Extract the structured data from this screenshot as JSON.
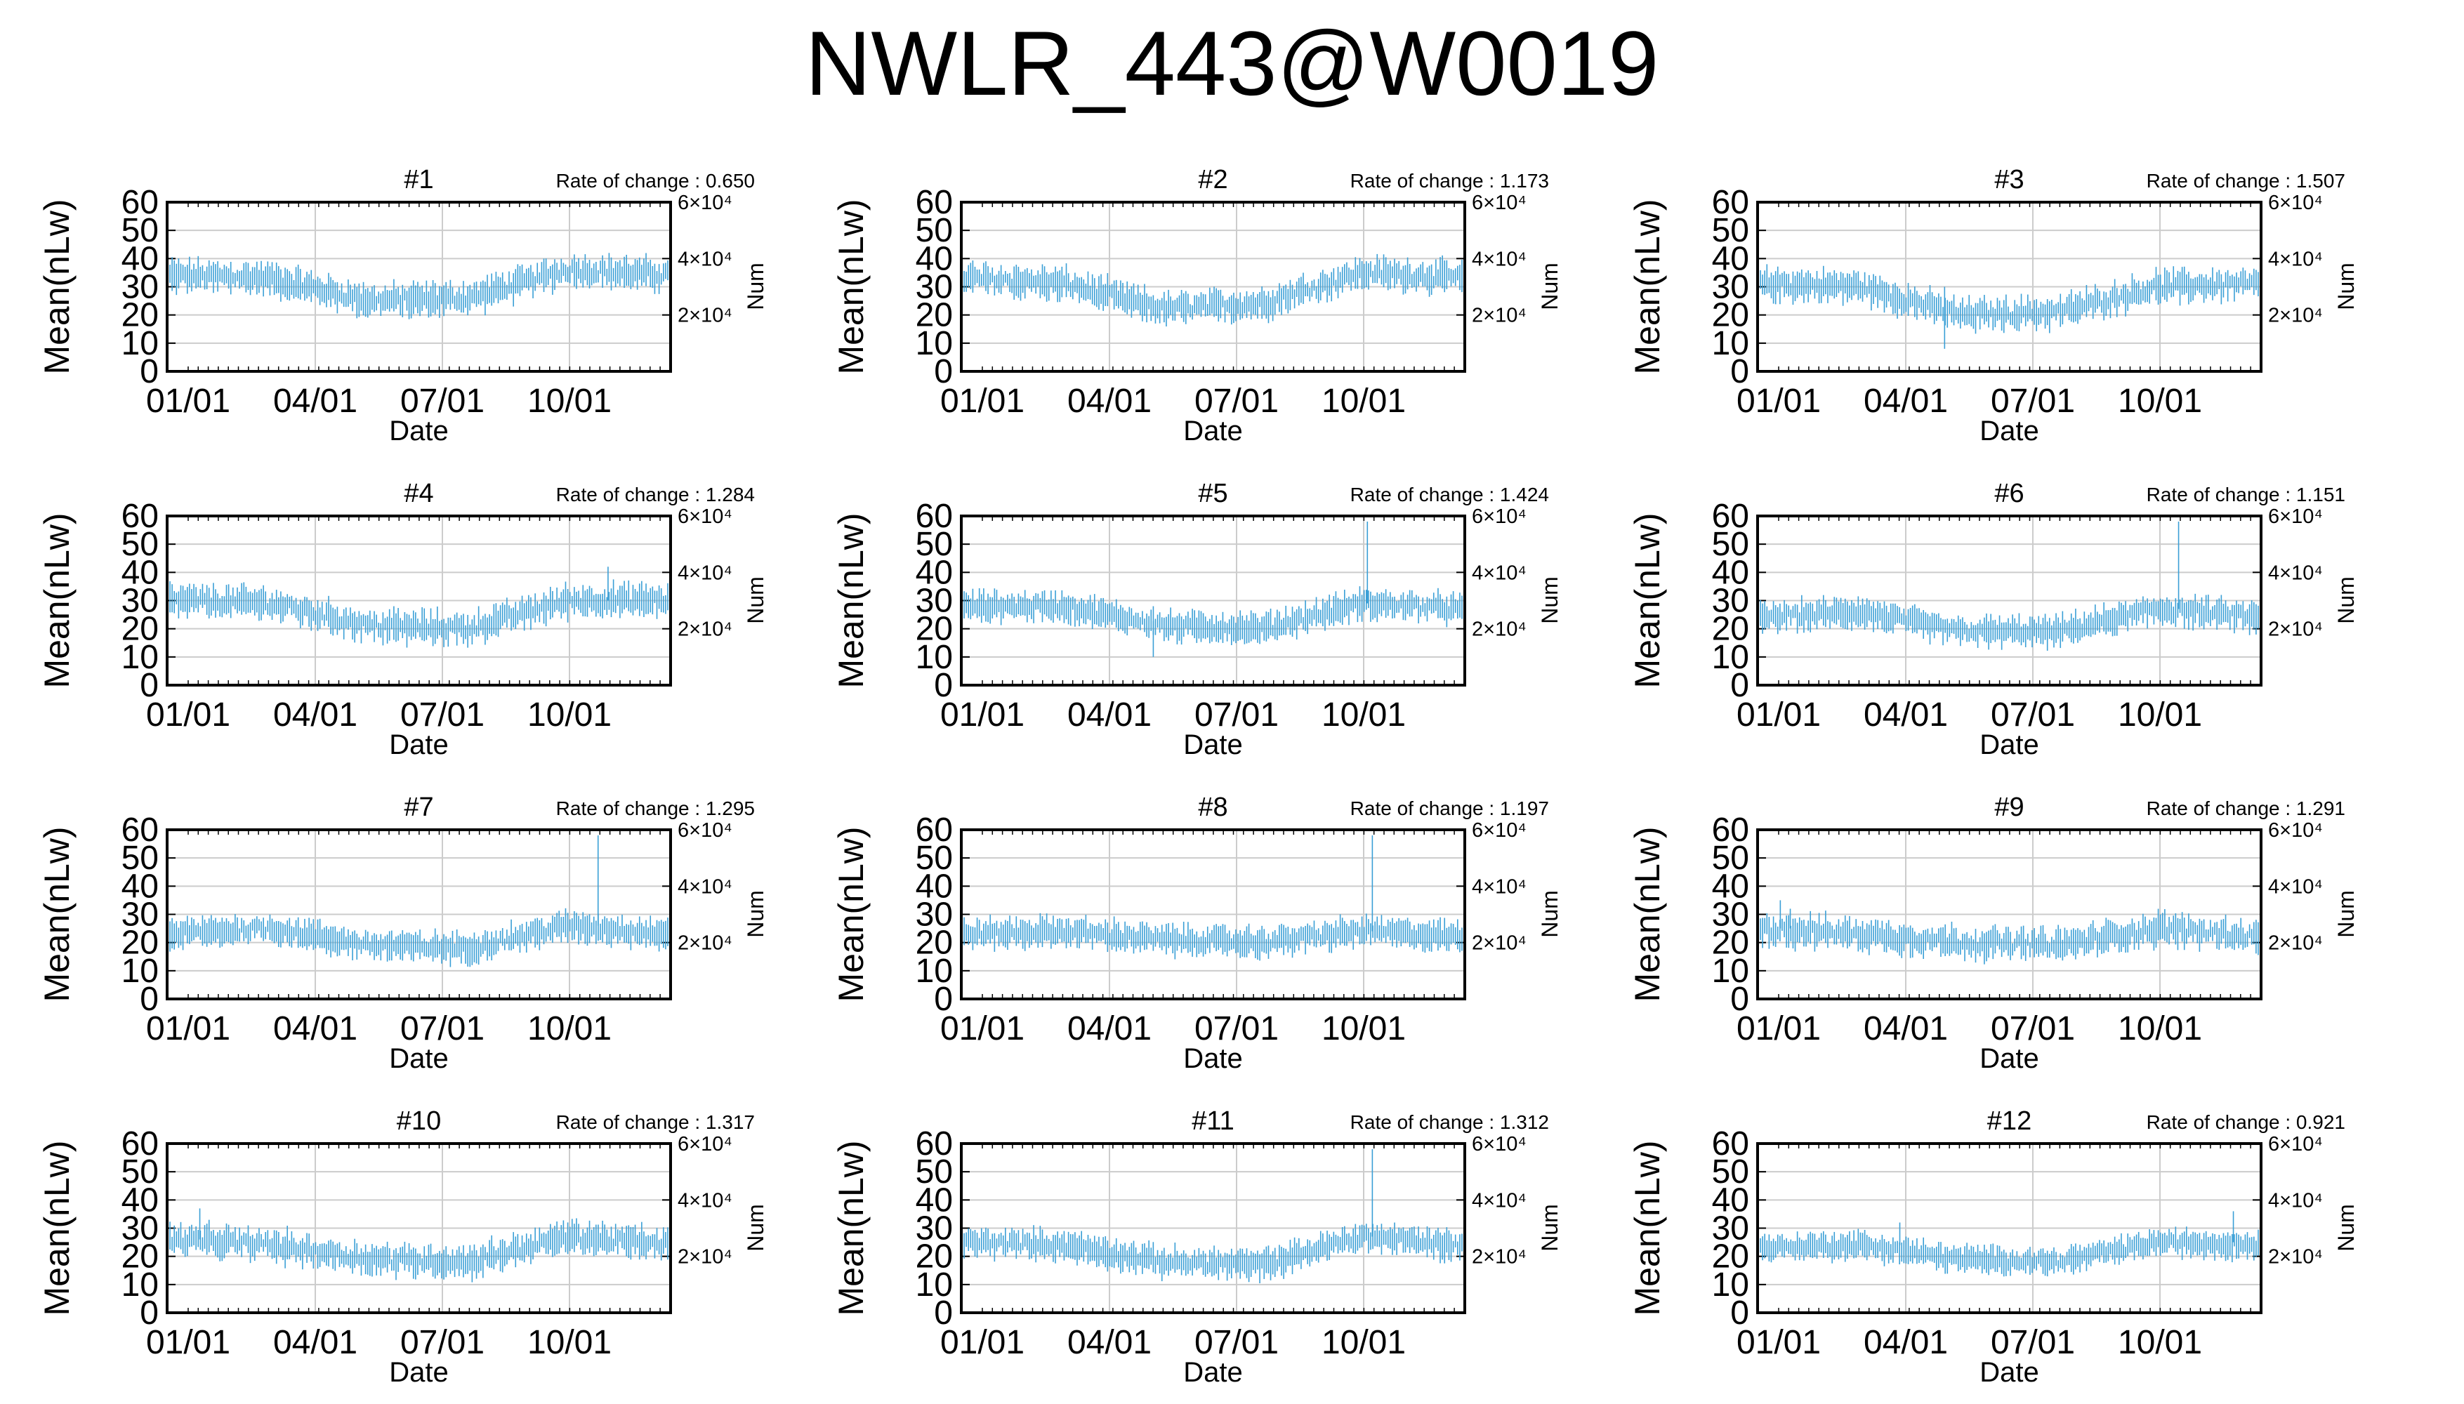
{
  "page_title": "NWLR_443@W0019",
  "chart_data": [
    {
      "type": "line",
      "title": "#1",
      "rate_label": "Rate of change : 0.650",
      "xlabel": "Date",
      "ylabel": "Mean(nLw)",
      "y2label": "Num",
      "x_ticks": [
        "01/01",
        "04/01",
        "07/01",
        "10/01"
      ],
      "y_ticks": [
        "0",
        "10",
        "20",
        "30",
        "40",
        "50",
        "60"
      ],
      "y2_ticks": [
        "2×10⁴",
        "4×10⁴",
        "6×10⁴"
      ],
      "ylim": [
        0,
        60
      ],
      "y2lim": [
        0,
        60000
      ],
      "color": "#3a9fd6",
      "seasonal": [
        34,
        33,
        25,
        26,
        36,
        34
      ],
      "noise": 4,
      "spikes": []
    },
    {
      "type": "line",
      "title": "#2",
      "rate_label": "Rate of change : 1.173",
      "xlabel": "Date",
      "ylabel": "Mean(nLw)",
      "y2label": "Num",
      "x_ticks": [
        "01/01",
        "04/01",
        "07/01",
        "10/01"
      ],
      "y_ticks": [
        "0",
        "10",
        "20",
        "30",
        "40",
        "50",
        "60"
      ],
      "y2_ticks": [
        "2×10⁴",
        "4×10⁴",
        "6×10⁴"
      ],
      "ylim": [
        0,
        60
      ],
      "y2lim": [
        0,
        60000
      ],
      "color": "#3a9fd6",
      "seasonal": [
        33,
        31,
        22,
        24,
        35,
        33
      ],
      "noise": 4,
      "spikes": []
    },
    {
      "type": "line",
      "title": "#3",
      "rate_label": "Rate of change : 1.507",
      "xlabel": "Date",
      "ylabel": "Mean(nLw)",
      "y2label": "Num",
      "x_ticks": [
        "01/01",
        "04/01",
        "07/01",
        "10/01"
      ],
      "y_ticks": [
        "0",
        "10",
        "20",
        "30",
        "40",
        "50",
        "60"
      ],
      "y2_ticks": [
        "2×10⁴",
        "4×10⁴",
        "6×10⁴"
      ],
      "ylim": [
        0,
        60
      ],
      "y2lim": [
        0,
        60000
      ],
      "color": "#3a9fd6",
      "seasonal": [
        31,
        30,
        20,
        21,
        30,
        31
      ],
      "noise": 4,
      "spikes": [
        [
          0.37,
          8
        ]
      ]
    },
    {
      "type": "line",
      "title": "#4",
      "rate_label": "Rate of change : 1.284",
      "xlabel": "Date",
      "ylabel": "Mean(nLw)",
      "y2label": "Num",
      "x_ticks": [
        "01/01",
        "04/01",
        "07/01",
        "10/01"
      ],
      "y_ticks": [
        "0",
        "10",
        "20",
        "30",
        "40",
        "50",
        "60"
      ],
      "y2_ticks": [
        "2×10⁴",
        "4×10⁴",
        "6×10⁴"
      ],
      "ylim": [
        0,
        60
      ],
      "y2lim": [
        0,
        60000
      ],
      "color": "#3a9fd6",
      "seasonal": [
        30,
        29,
        21,
        20,
        30,
        30
      ],
      "noise": 4,
      "spikes": [
        [
          0.88,
          42
        ]
      ]
    },
    {
      "type": "line",
      "title": "#5",
      "rate_label": "Rate of change : 1.424",
      "xlabel": "Date",
      "ylabel": "Mean(nLw)",
      "y2label": "Num",
      "x_ticks": [
        "01/01",
        "04/01",
        "07/01",
        "10/01"
      ],
      "y_ticks": [
        "0",
        "10",
        "20",
        "30",
        "40",
        "50",
        "60"
      ],
      "y2_ticks": [
        "2×10⁴",
        "4×10⁴",
        "6×10⁴"
      ],
      "ylim": [
        0,
        60
      ],
      "y2lim": [
        0,
        60000
      ],
      "color": "#3a9fd6",
      "seasonal": [
        28,
        28,
        21,
        20,
        29,
        27
      ],
      "noise": 3.5,
      "spikes": [
        [
          0.81,
          58
        ],
        [
          0.38,
          10
        ]
      ]
    },
    {
      "type": "line",
      "title": "#6",
      "rate_label": "Rate of change : 1.151",
      "xlabel": "Date",
      "ylabel": "Mean(nLw)",
      "y2label": "Num",
      "x_ticks": [
        "01/01",
        "04/01",
        "07/01",
        "10/01"
      ],
      "y_ticks": [
        "0",
        "10",
        "20",
        "30",
        "40",
        "50",
        "60"
      ],
      "y2_ticks": [
        "2×10⁴",
        "4×10⁴",
        "6×10⁴"
      ],
      "ylim": [
        0,
        60
      ],
      "y2lim": [
        0,
        60000
      ],
      "color": "#3a9fd6",
      "seasonal": [
        24,
        26,
        19,
        19,
        27,
        24
      ],
      "noise": 3.5,
      "spikes": [
        [
          0.84,
          58
        ]
      ]
    },
    {
      "type": "line",
      "title": "#7",
      "rate_label": "Rate of change : 1.295",
      "xlabel": "Date",
      "ylabel": "Mean(nLw)",
      "y2label": "Num",
      "x_ticks": [
        "01/01",
        "04/01",
        "07/01",
        "10/01"
      ],
      "y_ticks": [
        "0",
        "10",
        "20",
        "30",
        "40",
        "50",
        "60"
      ],
      "y2_ticks": [
        "2×10⁴",
        "4×10⁴",
        "6×10⁴"
      ],
      "ylim": [
        0,
        60
      ],
      "y2lim": [
        0,
        60000
      ],
      "color": "#3a9fd6",
      "seasonal": [
        23,
        25,
        19,
        18,
        26,
        23
      ],
      "noise": 3.5,
      "spikes": [
        [
          0.86,
          58
        ]
      ]
    },
    {
      "type": "line",
      "title": "#8",
      "rate_label": "Rate of change : 1.197",
      "xlabel": "Date",
      "ylabel": "Mean(nLw)",
      "y2label": "Num",
      "x_ticks": [
        "01/01",
        "04/01",
        "07/01",
        "10/01"
      ],
      "y_ticks": [
        "0",
        "10",
        "20",
        "30",
        "40",
        "50",
        "60"
      ],
      "y2_ticks": [
        "2×10⁴",
        "4×10⁴",
        "6×10⁴"
      ],
      "ylim": [
        0,
        60
      ],
      "y2lim": [
        0,
        60000
      ],
      "color": "#3a9fd6",
      "seasonal": [
        23,
        24,
        21,
        20,
        24,
        22
      ],
      "noise": 3.5,
      "spikes": [
        [
          0.82,
          58
        ]
      ]
    },
    {
      "type": "line",
      "title": "#9",
      "rate_label": "Rate of change : 1.291",
      "xlabel": "Date",
      "ylabel": "Mean(nLw)",
      "y2label": "Num",
      "x_ticks": [
        "01/01",
        "04/01",
        "07/01",
        "10/01"
      ],
      "y_ticks": [
        "0",
        "10",
        "20",
        "30",
        "40",
        "50",
        "60"
      ],
      "y2_ticks": [
        "2×10⁴",
        "4×10⁴",
        "6×10⁴"
      ],
      "ylim": [
        0,
        60
      ],
      "y2lim": [
        0,
        60000
      ],
      "color": "#3a9fd6",
      "seasonal": [
        25,
        23,
        20,
        19,
        25,
        22
      ],
      "noise": 4,
      "spikes": [
        [
          0.04,
          35
        ],
        [
          0.06,
          32
        ]
      ]
    },
    {
      "type": "line",
      "title": "#10",
      "rate_label": "Rate of change : 1.317",
      "xlabel": "Date",
      "ylabel": "Mean(nLw)",
      "y2label": "Num",
      "x_ticks": [
        "01/01",
        "04/01",
        "07/01",
        "10/01"
      ],
      "y_ticks": [
        "0",
        "10",
        "20",
        "30",
        "40",
        "50",
        "60"
      ],
      "y2_ticks": [
        "2×10⁴",
        "4×10⁴",
        "6×10⁴"
      ],
      "ylim": [
        0,
        60
      ],
      "y2lim": [
        0,
        60000
      ],
      "color": "#3a9fd6",
      "seasonal": [
        26,
        24,
        19,
        18,
        27,
        24
      ],
      "noise": 4,
      "spikes": [
        [
          0.06,
          37
        ]
      ]
    },
    {
      "type": "line",
      "title": "#11",
      "rate_label": "Rate of change : 1.312",
      "xlabel": "Date",
      "ylabel": "Mean(nLw)",
      "y2label": "Num",
      "x_ticks": [
        "01/01",
        "04/01",
        "07/01",
        "10/01"
      ],
      "y_ticks": [
        "0",
        "10",
        "20",
        "30",
        "40",
        "50",
        "60"
      ],
      "y2_ticks": [
        "2×10⁴",
        "4×10⁴",
        "6×10⁴"
      ],
      "ylim": [
        0,
        60
      ],
      "y2lim": [
        0,
        60000
      ],
      "color": "#3a9fd6",
      "seasonal": [
        25,
        24,
        18,
        17,
        27,
        24
      ],
      "noise": 3.5,
      "spikes": [
        [
          0.82,
          58
        ]
      ]
    },
    {
      "type": "line",
      "title": "#12",
      "rate_label": "Rate of change : 0.921",
      "xlabel": "Date",
      "ylabel": "Mean(nLw)",
      "y2label": "Num",
      "x_ticks": [
        "01/01",
        "04/01",
        "07/01",
        "10/01"
      ],
      "y_ticks": [
        "0",
        "10",
        "20",
        "30",
        "40",
        "50",
        "60"
      ],
      "y2_ticks": [
        "2×10⁴",
        "4×10⁴",
        "6×10⁴"
      ],
      "ylim": [
        0,
        60
      ],
      "y2lim": [
        0,
        60000
      ],
      "color": "#3a9fd6",
      "seasonal": [
        23,
        24,
        19,
        18,
        25,
        24
      ],
      "noise": 3,
      "spikes": [
        [
          0.95,
          36
        ],
        [
          0.28,
          32
        ]
      ]
    }
  ]
}
